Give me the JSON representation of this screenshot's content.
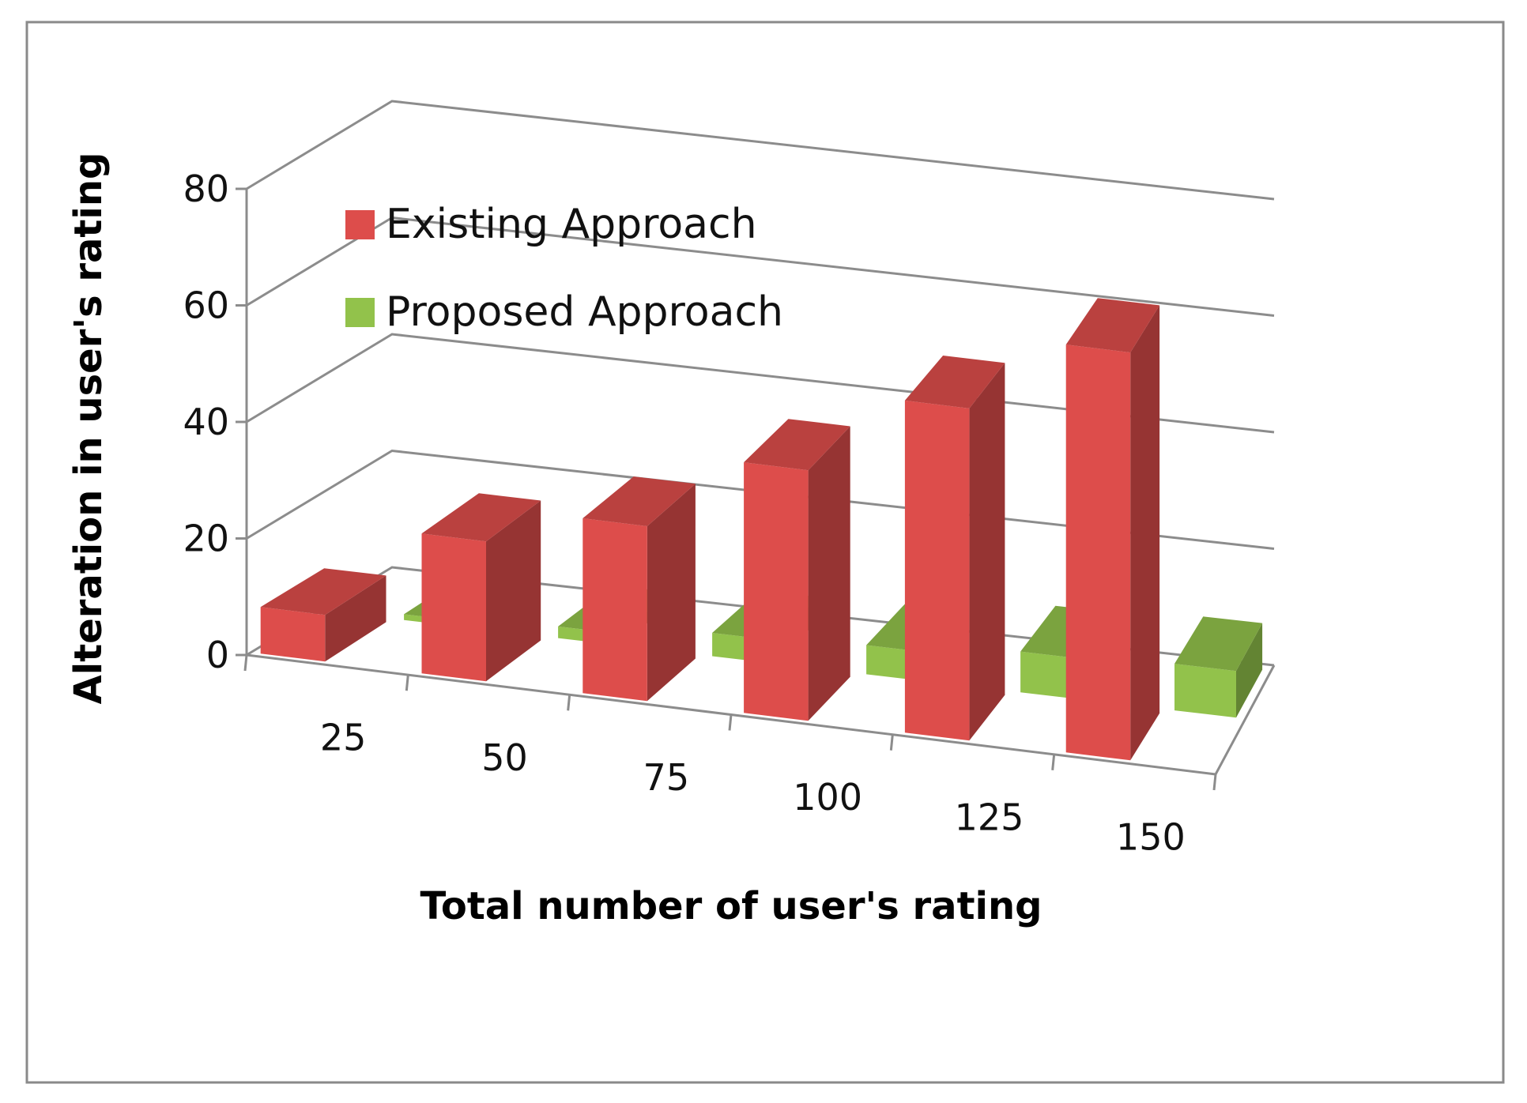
{
  "chart_data": {
    "type": "bar",
    "style": "3d-clustered-column",
    "title": "",
    "xlabel": "Total number of user's rating",
    "ylabel": "Alteration in user's rating",
    "categories": [
      "25",
      "50",
      "75",
      "100",
      "125",
      "150"
    ],
    "series": [
      {
        "name": "Existing Approach",
        "values": [
          8,
          24,
          30,
          43,
          57,
          70
        ],
        "color": "#dd4d4b"
      },
      {
        "name": "Proposed Approach",
        "values": [
          1,
          2,
          4,
          5,
          7,
          8
        ],
        "color": "#92c24b"
      }
    ],
    "ylim": [
      0,
      80
    ],
    "yticks": [
      "0",
      "20",
      "40",
      "60",
      "80"
    ],
    "grid": true,
    "legend": "top-left"
  }
}
